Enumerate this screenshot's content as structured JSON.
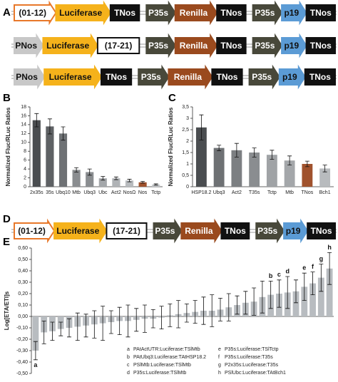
{
  "panel_a": {
    "label": "A",
    "rows": [
      [
        {
          "label": "(01-12)",
          "fill": "#ffffff",
          "border": "#e8782a",
          "text_color": "#111111",
          "shape": "arrow"
        },
        {
          "label": "Luciferase",
          "fill": "#f5b21b",
          "border": "#f5b21b",
          "text_color": "#111111",
          "shape": "arrow"
        },
        {
          "label": "TNos",
          "fill": "#111111",
          "border": "#111111",
          "text_color": "#ffffff",
          "shape": "box"
        },
        {
          "label": "P35s",
          "fill": "#48483a",
          "border": "#48483a",
          "text_color": "#ffffff",
          "shape": "arrow"
        },
        {
          "label": "Renilla",
          "fill": "#9a4a1e",
          "border": "#9a4a1e",
          "text_color": "#ffffff",
          "shape": "arrow"
        },
        {
          "label": "TNos",
          "fill": "#111111",
          "border": "#111111",
          "text_color": "#ffffff",
          "shape": "box"
        },
        {
          "label": "P35s",
          "fill": "#48483a",
          "border": "#48483a",
          "text_color": "#ffffff",
          "shape": "arrow"
        },
        {
          "label": "p19",
          "fill": "#5b9bd5",
          "border": "#5b9bd5",
          "text_color": "#111111",
          "shape": "arrow"
        },
        {
          "label": "TNos",
          "fill": "#111111",
          "border": "#111111",
          "text_color": "#ffffff",
          "shape": "box"
        }
      ],
      [
        {
          "label": "PNos",
          "fill": "#c8c8c8",
          "border": "#c8c8c8",
          "text_color": "#111111",
          "shape": "arrow"
        },
        {
          "label": "Luciferase",
          "fill": "#f5b21b",
          "border": "#f5b21b",
          "text_color": "#111111",
          "shape": "arrow"
        },
        {
          "label": "(17-21)",
          "fill": "#ffffff",
          "border": "#111111",
          "text_color": "#111111",
          "shape": "box"
        },
        {
          "label": "P35s",
          "fill": "#48483a",
          "border": "#48483a",
          "text_color": "#ffffff",
          "shape": "arrow"
        },
        {
          "label": "Renilla",
          "fill": "#9a4a1e",
          "border": "#9a4a1e",
          "text_color": "#ffffff",
          "shape": "arrow"
        },
        {
          "label": "TNos",
          "fill": "#111111",
          "border": "#111111",
          "text_color": "#ffffff",
          "shape": "box"
        },
        {
          "label": "P35s",
          "fill": "#48483a",
          "border": "#48483a",
          "text_color": "#ffffff",
          "shape": "arrow"
        },
        {
          "label": "p19",
          "fill": "#5b9bd5",
          "border": "#5b9bd5",
          "text_color": "#111111",
          "shape": "arrow"
        },
        {
          "label": "TNos",
          "fill": "#111111",
          "border": "#111111",
          "text_color": "#ffffff",
          "shape": "box"
        }
      ],
      [
        {
          "label": "PNos",
          "fill": "#c8c8c8",
          "border": "#c8c8c8",
          "text_color": "#111111",
          "shape": "arrow"
        },
        {
          "label": "Luciferase",
          "fill": "#f5b21b",
          "border": "#f5b21b",
          "text_color": "#111111",
          "shape": "arrow"
        },
        {
          "label": "TNos",
          "fill": "#111111",
          "border": "#111111",
          "text_color": "#ffffff",
          "shape": "box"
        },
        {
          "label": "P35s",
          "fill": "#48483a",
          "border": "#48483a",
          "text_color": "#ffffff",
          "shape": "arrow"
        },
        {
          "label": "Renilla",
          "fill": "#9a4a1e",
          "border": "#9a4a1e",
          "text_color": "#ffffff",
          "shape": "arrow"
        },
        {
          "label": "TNos",
          "fill": "#111111",
          "border": "#111111",
          "text_color": "#ffffff",
          "shape": "box"
        },
        {
          "label": "P35s",
          "fill": "#48483a",
          "border": "#48483a",
          "text_color": "#ffffff",
          "shape": "arrow"
        },
        {
          "label": "p19",
          "fill": "#5b9bd5",
          "border": "#5b9bd5",
          "text_color": "#111111",
          "shape": "arrow"
        },
        {
          "label": "TNos",
          "fill": "#111111",
          "border": "#111111",
          "text_color": "#ffffff",
          "shape": "box"
        }
      ]
    ]
  },
  "panel_d": {
    "label": "D",
    "rows": [
      [
        {
          "label": "(01-12)",
          "fill": "#ffffff",
          "border": "#e8782a",
          "text_color": "#111111",
          "shape": "arrow"
        },
        {
          "label": "Luciferase",
          "fill": "#f5b21b",
          "border": "#f5b21b",
          "text_color": "#111111",
          "shape": "arrow"
        },
        {
          "label": "(17-21)",
          "fill": "#ffffff",
          "border": "#111111",
          "text_color": "#111111",
          "shape": "box"
        },
        {
          "label": "P35s",
          "fill": "#48483a",
          "border": "#48483a",
          "text_color": "#ffffff",
          "shape": "arrow"
        },
        {
          "label": "Renilla",
          "fill": "#9a4a1e",
          "border": "#9a4a1e",
          "text_color": "#ffffff",
          "shape": "arrow"
        },
        {
          "label": "TNos",
          "fill": "#111111",
          "border": "#111111",
          "text_color": "#ffffff",
          "shape": "box"
        },
        {
          "label": "P35s",
          "fill": "#48483a",
          "border": "#48483a",
          "text_color": "#ffffff",
          "shape": "arrow"
        },
        {
          "label": "p19",
          "fill": "#5b9bd5",
          "border": "#5b9bd5",
          "text_color": "#111111",
          "shape": "arrow"
        },
        {
          "label": "TNos",
          "fill": "#111111",
          "border": "#111111",
          "text_color": "#ffffff",
          "shape": "box"
        }
      ]
    ]
  },
  "chart_data": [
    {
      "type": "bar",
      "panel_label": "B",
      "y_label": "Normalized Fluc/RLuc Ratios",
      "categories": [
        "2x35s",
        "35s",
        "Ubq10",
        "Mtb",
        "Ubq3",
        "Ubc",
        "Act2",
        "NosΩ",
        "Nos",
        "Tctp"
      ],
      "values": [
        15,
        13.6,
        12,
        3.8,
        3.3,
        1.9,
        1.9,
        1.4,
        1.0,
        0.5
      ],
      "errors": [
        1.5,
        1.7,
        1.5,
        0.5,
        0.7,
        0.4,
        0.3,
        0.3,
        0.2,
        0.15
      ],
      "colors": [
        "#4a4d50",
        "#5e6164",
        "#6e7174",
        "#8a8d90",
        "#8a8d90",
        "#a4a7aa",
        "#b0b3b6",
        "#b8bbbe",
        "#a0522d",
        "#c4c7ca"
      ],
      "ylim": [
        0,
        18
      ],
      "yticks": [
        0,
        2,
        4,
        6,
        8,
        10,
        12,
        14,
        16,
        18
      ]
    },
    {
      "type": "bar",
      "panel_label": "C",
      "y_label": "Normalized Fluc/RLuc Ratios",
      "categories": [
        "HSP18.2",
        "Ubq3",
        "Act2",
        "T35s",
        "Tctp",
        "Mtb",
        "TNos",
        "Bch1"
      ],
      "values": [
        2.6,
        1.7,
        1.6,
        1.5,
        1.4,
        1.15,
        1.0,
        0.8
      ],
      "errors": [
        0.55,
        0.12,
        0.3,
        0.2,
        0.2,
        0.2,
        0.12,
        0.15
      ],
      "colors": [
        "#4a4d50",
        "#6e7174",
        "#7c7f82",
        "#8a8d90",
        "#a0a3a6",
        "#a4a7aa",
        "#a0522d",
        "#b8bbbe"
      ],
      "ylim": [
        0,
        3.5
      ],
      "yticks": [
        0,
        {
          "value": 0.5,
          "label": "0,5"
        },
        1,
        {
          "value": 1.5,
          "label": "1,5"
        },
        2,
        {
          "value": 2.5,
          "label": "2,5"
        },
        3,
        {
          "value": 3.5,
          "label": "3,5"
        }
      ]
    },
    {
      "type": "bar",
      "panel_label": "E",
      "y_label": "Log[ETA/ETI]s",
      "values": [
        -0.3,
        -0.14,
        -0.13,
        -0.11,
        -0.1,
        -0.09,
        -0.08,
        -0.07,
        -0.06,
        -0.05,
        -0.04,
        -0.04,
        -0.03,
        -0.02,
        -0.02,
        -0.01,
        0.01,
        0.02,
        0.03,
        0.04,
        0.05,
        0.05,
        0.06,
        0.08,
        0.1,
        0.12,
        0.13,
        0.17,
        0.19,
        0.2,
        0.21,
        0.22,
        0.26,
        0.29,
        0.34,
        0.42
      ],
      "errors": [
        0.08,
        0.1,
        0.08,
        0.06,
        0.08,
        0.12,
        0.1,
        0.12,
        0.15,
        0.1,
        0.12,
        0.14,
        0.1,
        0.12,
        0.08,
        0.1,
        0.1,
        0.12,
        0.08,
        0.1,
        0.12,
        0.14,
        0.1,
        0.12,
        0.08,
        0.1,
        0.12,
        0.14,
        0.12,
        0.12,
        0.14,
        0.1,
        0.12,
        0.1,
        0.12,
        0.14
      ],
      "bar_labels": [
        "a",
        null,
        null,
        null,
        null,
        null,
        null,
        null,
        null,
        null,
        null,
        null,
        null,
        null,
        null,
        null,
        null,
        null,
        null,
        null,
        null,
        null,
        null,
        null,
        null,
        null,
        null,
        null,
        "b",
        "c",
        "d",
        null,
        "e",
        "f",
        "g",
        "h"
      ],
      "color": "#b8bcc0",
      "ylim": [
        -0.5,
        0.6
      ],
      "yticks": [
        {
          "value": -0.5,
          "label": "-0,50"
        },
        {
          "value": -0.4,
          "label": "-0,40"
        },
        {
          "value": -0.3,
          "label": "-0,30"
        },
        {
          "value": -0.2,
          "label": "-0,20"
        },
        {
          "value": -0.1,
          "label": "-0,10"
        },
        {
          "value": 0,
          "label": "0,00"
        },
        {
          "value": 0.1,
          "label": "0,10"
        },
        {
          "value": 0.2,
          "label": "0,20"
        },
        {
          "value": 0.3,
          "label": "0,30"
        },
        {
          "value": 0.4,
          "label": "0,40"
        },
        {
          "value": 0.5,
          "label": "0,50"
        },
        {
          "value": 0.6,
          "label": "0,60"
        }
      ],
      "legend_entries": [
        {
          "key": "a",
          "text": "PAtActUTR:Luciferase:TSlMtb"
        },
        {
          "key": "b",
          "text": "PAtUbq3:Luciferase:TAtHSP18.2"
        },
        {
          "key": "c",
          "text": "PSlMtb:Luciferase:TSlMtb"
        },
        {
          "key": "d",
          "text": "P35s:Luciferase:TSlMtb"
        },
        {
          "key": "e",
          "text": "P35s:Luciferase:TSlTctp"
        },
        {
          "key": "f",
          "text": "P35s:Luciferase:T35s"
        },
        {
          "key": "g",
          "text": "P2x35s:Luciferase:T35s"
        },
        {
          "key": "h",
          "text": "PSlUbc:Luciferase:TAtBch1"
        }
      ]
    }
  ]
}
